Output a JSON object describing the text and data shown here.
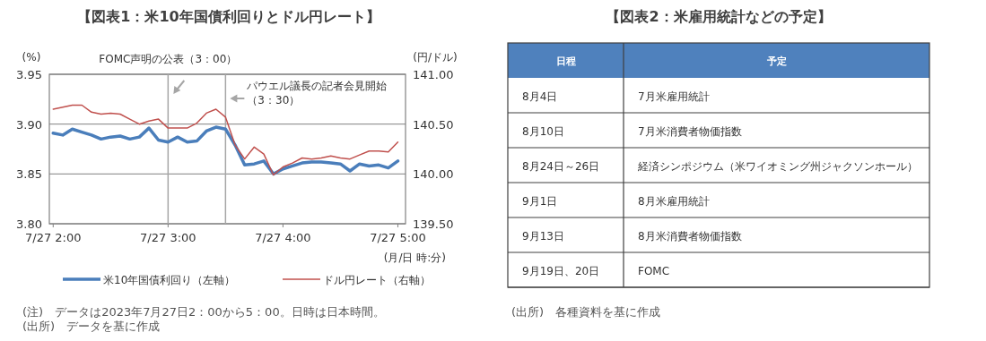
{
  "chart_data": [
    {
      "type": "line",
      "title": "【図表1：米10年国債利回りとドル円レート】",
      "ylabel": "(%)",
      "y2label": "(円/ドル)",
      "xlabel": "(月/日 時:分)",
      "x": [
        "2023-07-27T02:00",
        "2023-07-27T02:05",
        "2023-07-27T02:10",
        "2023-07-27T02:15",
        "2023-07-27T02:20",
        "2023-07-27T02:25",
        "2023-07-27T02:30",
        "2023-07-27T02:35",
        "2023-07-27T02:40",
        "2023-07-27T02:45",
        "2023-07-27T02:50",
        "2023-07-27T02:55",
        "2023-07-27T03:00",
        "2023-07-27T03:05",
        "2023-07-27T03:10",
        "2023-07-27T03:15",
        "2023-07-27T03:20",
        "2023-07-27T03:25",
        "2023-07-27T03:30",
        "2023-07-27T03:35",
        "2023-07-27T03:40",
        "2023-07-27T03:45",
        "2023-07-27T03:50",
        "2023-07-27T03:55",
        "2023-07-27T04:00",
        "2023-07-27T04:05",
        "2023-07-27T04:10",
        "2023-07-27T04:15",
        "2023-07-27T04:20",
        "2023-07-27T04:25",
        "2023-07-27T04:30",
        "2023-07-27T04:35",
        "2023-07-27T04:40",
        "2023-07-27T04:45",
        "2023-07-27T04:50",
        "2023-07-27T04:55",
        "2023-07-27T05:00"
      ],
      "series": [
        {
          "name": "米10年国債利回り（左軸）",
          "color": "#4a7ebb",
          "values": [
            3.891,
            3.889,
            3.895,
            3.892,
            3.889,
            3.885,
            3.887,
            3.888,
            3.885,
            3.887,
            3.896,
            3.884,
            3.882,
            3.887,
            3.882,
            3.883,
            3.893,
            3.897,
            3.895,
            3.879,
            3.859,
            3.86,
            3.863,
            3.85,
            3.855,
            3.858,
            3.861,
            3.862,
            3.862,
            3.861,
            3.86,
            3.853,
            3.86,
            3.858,
            3.859,
            3.856,
            3.863
          ]
        },
        {
          "name": "ドル円レート（右軸）",
          "color": "#c0504d",
          "axis": "y2",
          "values": [
            140.65,
            140.67,
            140.69,
            140.69,
            140.62,
            140.6,
            140.61,
            140.6,
            140.55,
            140.5,
            140.53,
            140.55,
            140.46,
            140.46,
            140.46,
            140.51,
            140.61,
            140.65,
            140.57,
            140.29,
            140.15,
            140.27,
            140.2,
            139.99,
            140.07,
            140.11,
            140.16,
            140.15,
            140.16,
            140.18,
            140.16,
            140.15,
            140.19,
            140.23,
            140.23,
            140.22,
            140.32
          ]
        }
      ],
      "xlim": [
        "2023-07-27T01:58",
        "2023-07-27T05:04"
      ],
      "xticks": [
        {
          "value": "2023-07-27T02:00",
          "label": "7/27 2:00"
        },
        {
          "value": "2023-07-27T03:00",
          "label": "7/27 3:00"
        },
        {
          "value": "2023-07-27T04:00",
          "label": "7/27 4:00"
        },
        {
          "value": "2023-07-27T05:00",
          "label": "7/27 5:00"
        }
      ],
      "ylim": [
        3.8,
        3.95
      ],
      "yticks": [
        {
          "value": 3.8,
          "label": "3.80"
        },
        {
          "value": 3.85,
          "label": "3.85"
        },
        {
          "value": 3.9,
          "label": "3.90"
        },
        {
          "value": 3.95,
          "label": "3.95"
        }
      ],
      "y2lim": [
        139.5,
        141
      ],
      "y2ticks": [
        {
          "value": 139.5,
          "label": "139.50"
        },
        {
          "value": 140,
          "label": "140.00"
        },
        {
          "value": 140.5,
          "label": "140.50"
        },
        {
          "value": 141,
          "label": "141.00"
        }
      ],
      "ref_lines": [
        {
          "axis": "x",
          "value": "2023-07-27T03:00",
          "label": "FOMC声明の公表（3：00）",
          "color": "#a6a6a6"
        },
        {
          "axis": "x",
          "value": "2023-07-27T03:30",
          "label": "パウエル議長の記者会見開始（3：30）",
          "color": "#a6a6a6"
        }
      ],
      "grid": "y",
      "legend": "bottom",
      "marker": "none",
      "line_style": "solid",
      "annotations": [
        "(注)　データは2023年7月27日2：00から5：00。日時は日本時間。",
        "(出所)　データを基に作成"
      ]
    },
    {
      "type": "other",
      "title": "【図表2：米雇用統計などの予定】",
      "color": "#4f81bd",
      "categories": [
        "日程",
        "予定"
      ],
      "y_categories": [
        "8月4日",
        "8月10日",
        "8月24日～26日",
        "9月1日",
        "9月13日",
        "9月19日、20日"
      ],
      "cell_labels": [
        [
          "7月米雇用統計"
        ],
        [
          "7月米消費者物価指数"
        ],
        [
          "経済シンポジウム（米ワイオミング州ジャクソンホール）"
        ],
        [
          "8月米雇用統計"
        ],
        [
          "8月米消費者物価指数"
        ],
        [
          "FOMC"
        ]
      ],
      "annotations": [
        "(出所)　各種資料を基に作成"
      ]
    }
  ]
}
